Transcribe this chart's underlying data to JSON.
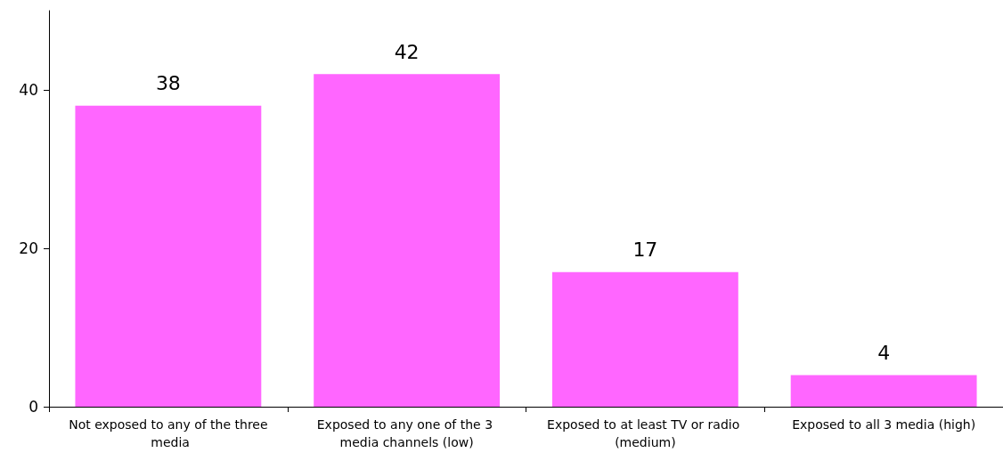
{
  "chart_data": {
    "type": "bar",
    "categories": [
      "Not exposed to any of the three media",
      "Exposed to any one of the 3 media channels (low)",
      "Exposed to at least TV or radio (medium)",
      "Exposed to all 3 media (high)"
    ],
    "values": [
      38,
      42,
      17,
      4
    ],
    "color": "#ff66ff",
    "data_labels": true,
    "ylim": [
      0,
      50
    ],
    "yticks": [
      0,
      20,
      40
    ],
    "grid": false
  }
}
